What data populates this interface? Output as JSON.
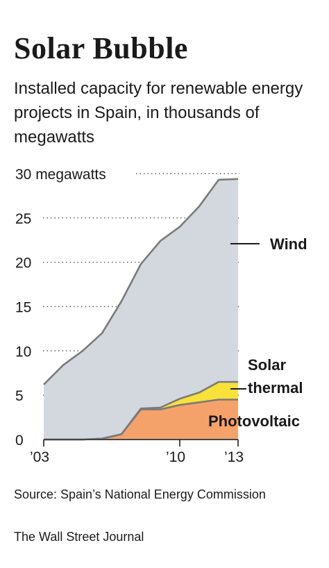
{
  "title": "Solar Bubble",
  "subtitle": "Installed capacity for renewable energy projects in Spain, in thousands of megawatts",
  "source": "Source: Spain’s National Energy Commission",
  "credit": "The Wall Street Journal",
  "colors": {
    "wind": "#d3d8de",
    "solar_thermal": "#f7e13a",
    "photovoltaic": "#f5a26a",
    "line": "#7a7a7a",
    "grid": "#555555"
  },
  "chart_data": {
    "type": "area",
    "stacked": true,
    "x": [
      2003,
      2004,
      2005,
      2006,
      2007,
      2008,
      2009,
      2010,
      2011,
      2012,
      2013
    ],
    "x_tick_labels": [
      "’03",
      "’10",
      "’13"
    ],
    "x_ticks": [
      2003,
      2010,
      2013
    ],
    "y_ticks": [
      0,
      5,
      10,
      15,
      20,
      25,
      30
    ],
    "y_tick_labels": [
      "0",
      "5",
      "10",
      "15",
      "20",
      "25",
      "30 megawatts"
    ],
    "ylim": [
      0,
      30
    ],
    "grid": "dotted horizontal",
    "series": [
      {
        "name": "Photovoltaic",
        "values": [
          0,
          0,
          0,
          0.1,
          0.6,
          3.4,
          3.4,
          3.9,
          4.2,
          4.5,
          4.5
        ]
      },
      {
        "name": "Solar thermal",
        "values": [
          0,
          0,
          0,
          0,
          0,
          0.1,
          0.2,
          0.7,
          1.1,
          2.0,
          2.0
        ]
      },
      {
        "name": "Wind",
        "values": [
          6.2,
          8.4,
          10.0,
          11.9,
          15.0,
          16.3,
          18.8,
          19.4,
          21.0,
          22.8,
          22.9
        ]
      }
    ],
    "labels": {
      "wind": "Wind",
      "solar_thermal_1": "Solar",
      "solar_thermal_2": "thermal",
      "photovoltaic": "Photovoltaic"
    }
  }
}
